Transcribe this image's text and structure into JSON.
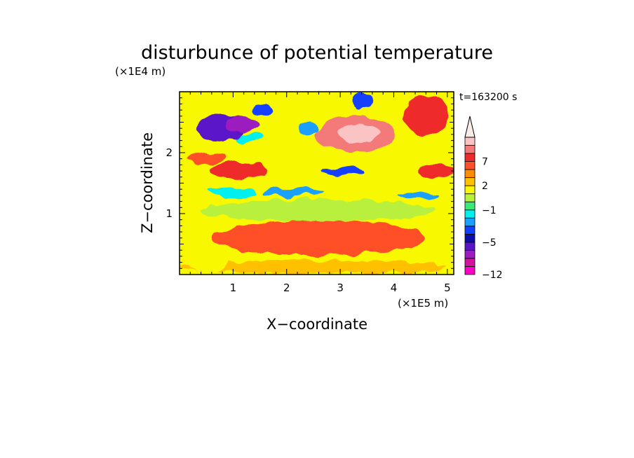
{
  "chart_data": {
    "type": "heatmap",
    "title": "disturbunce of potential temperature",
    "ylabel": "Z−coordinate",
    "xlabel": "X−coordinate",
    "y_unit": "(×1E4 m)",
    "x_unit": "(×1E5 m)",
    "time_label": "t=163200 s",
    "xlim": [
      0,
      5.12
    ],
    "ylim": [
      0,
      3.0
    ],
    "x_ticks": [
      1,
      2,
      3,
      4,
      5
    ],
    "x_tick_labels": [
      "1",
      "2",
      "3",
      "4",
      "5"
    ],
    "y_ticks": [
      1,
      2
    ],
    "y_tick_labels": [
      "1",
      "2"
    ],
    "colorbar": {
      "levels": [
        -12,
        -11,
        -9,
        -7,
        -5,
        -4,
        -3,
        -2,
        -1,
        0,
        1,
        2,
        3,
        5,
        7,
        9,
        11
      ],
      "labeled_levels": [
        -12,
        -5,
        -1,
        2,
        7
      ],
      "labels": [
        "−12",
        "−5",
        "−1",
        "2",
        "7"
      ],
      "colors": [
        "#ff00c8",
        "#d4149e",
        "#9c1cc0",
        "#5a14c8",
        "#0c0ca8",
        "#1240ff",
        "#1aa0ff",
        "#00f0f0",
        "#3ce878",
        "#b8f03c",
        "#f8f800",
        "#ffc000",
        "#ff8c00",
        "#ff5028",
        "#ee2a2a",
        "#f47a7a",
        "#fbc4c4",
        "#f8ece8"
      ]
    },
    "features": [
      {
        "x": 0.75,
        "y": 2.4,
        "rx": 0.45,
        "ry": 0.22,
        "value": -8,
        "shape": "blob"
      },
      {
        "x": 1.15,
        "y": 2.48,
        "rx": 0.3,
        "ry": 0.12,
        "value": -10,
        "shape": "blob"
      },
      {
        "x": 1.55,
        "y": 2.7,
        "rx": 0.18,
        "ry": 0.1,
        "value": -5,
        "shape": "blob"
      },
      {
        "x": 3.4,
        "y": 2.85,
        "rx": 0.18,
        "ry": 0.15,
        "value": -5,
        "shape": "blob"
      },
      {
        "x": 2.4,
        "y": 2.4,
        "rx": 0.18,
        "ry": 0.1,
        "value": -4,
        "shape": "blob"
      },
      {
        "x": 1.3,
        "y": 2.25,
        "rx": 0.25,
        "ry": 0.08,
        "value": -3,
        "shape": "blob"
      },
      {
        "x": 3.3,
        "y": 2.3,
        "rx": 0.75,
        "ry": 0.3,
        "value": 7,
        "shape": "blob"
      },
      {
        "x": 3.35,
        "y": 2.32,
        "rx": 0.35,
        "ry": 0.15,
        "value": 9,
        "shape": "blob"
      },
      {
        "x": 1.1,
        "y": 1.7,
        "rx": 0.55,
        "ry": 0.13,
        "value": 6,
        "shape": "blob"
      },
      {
        "x": 0.5,
        "y": 1.9,
        "rx": 0.35,
        "ry": 0.1,
        "value": 4,
        "shape": "blob"
      },
      {
        "x": 4.6,
        "y": 2.6,
        "rx": 0.4,
        "ry": 0.35,
        "value": 6,
        "shape": "blob"
      },
      {
        "x": 4.8,
        "y": 1.7,
        "rx": 0.35,
        "ry": 0.12,
        "value": 6,
        "shape": "blob"
      },
      {
        "x": 3.05,
        "y": 1.7,
        "rx": 0.4,
        "ry": 0.07,
        "value": -5,
        "shape": "blob"
      },
      {
        "x": 2.1,
        "y": 1.35,
        "rx": 0.55,
        "ry": 0.07,
        "value": -4,
        "shape": "blob"
      },
      {
        "x": 1.0,
        "y": 1.35,
        "rx": 0.45,
        "ry": 0.08,
        "value": -3,
        "shape": "blob"
      },
      {
        "x": 4.45,
        "y": 1.3,
        "rx": 0.35,
        "ry": 0.06,
        "value": -4,
        "shape": "blob"
      },
      {
        "x": 2.6,
        "y": 1.05,
        "rx": 2.2,
        "ry": 0.18,
        "value": -1,
        "shape": "band"
      },
      {
        "x": 2.6,
        "y": 0.6,
        "rx": 2.0,
        "ry": 0.28,
        "value": 3,
        "shape": "band"
      },
      {
        "x": 2.5,
        "y": 0.12,
        "rx": 2.5,
        "ry": 0.12,
        "value": 1,
        "shape": "band"
      },
      {
        "x": 0.55,
        "y": 0.2,
        "rx": 0.35,
        "ry": 0.18,
        "value": 0,
        "shape": "blob"
      }
    ],
    "background_value": 0.5,
    "grid": false,
    "legend_placement": "right"
  }
}
